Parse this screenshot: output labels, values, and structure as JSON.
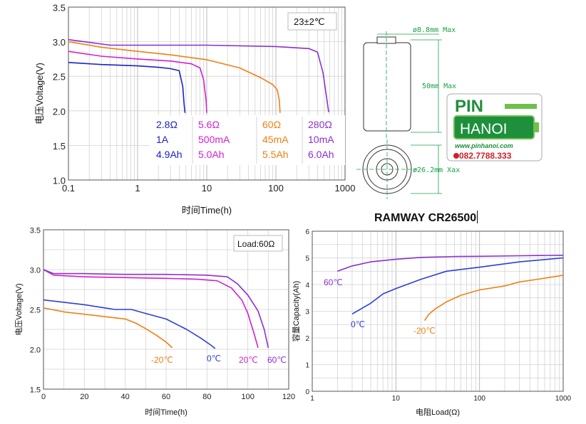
{
  "chart_data": [
    {
      "type": "line",
      "xscale": "log",
      "xlim": [
        0.1,
        1000
      ],
      "ylim": [
        1.0,
        3.5
      ],
      "xticks": [
        "0.1",
        "1",
        "10",
        "100",
        "1000"
      ],
      "yticks": [
        "1.0",
        "1.5",
        "2.0",
        "2.5",
        "3.0",
        "3.5"
      ],
      "xlabel": "时间Time(h)",
      "ylabel": "电压Voltage(V)",
      "annotation": "23±2℃",
      "legend": [
        {
          "r": "2.8Ω",
          "i": "1A",
          "c": "4.9Ah",
          "color": "#1a22c8"
        },
        {
          "r": "5.6Ω",
          "i": "500mA",
          "c": "5.0Ah",
          "color": "#d21fcf"
        },
        {
          "r": "60Ω",
          "i": "45mA",
          "c": "5.5Ah",
          "color": "#f07f12"
        },
        {
          "r": "280Ω",
          "i": "10mA",
          "c": "6.0Ah",
          "color": "#8a2fd0"
        }
      ],
      "series": [
        {
          "color": "#1a22c8",
          "x": [
            0.1,
            0.3,
            1,
            2,
            3,
            4,
            4.5,
            4.7,
            4.85
          ],
          "y": [
            2.7,
            2.67,
            2.65,
            2.63,
            2.61,
            2.58,
            2.35,
            2.1,
            1.97
          ]
        },
        {
          "color": "#d21fcf",
          "x": [
            0.1,
            0.3,
            1,
            3,
            6,
            8,
            9,
            9.8,
            10
          ],
          "y": [
            2.86,
            2.79,
            2.75,
            2.72,
            2.68,
            2.62,
            2.45,
            2.15,
            1.97
          ]
        },
        {
          "color": "#f07f12",
          "x": [
            0.1,
            0.3,
            1,
            3,
            10,
            30,
            60,
            90,
            105,
            112,
            115
          ],
          "y": [
            3.0,
            2.92,
            2.86,
            2.81,
            2.74,
            2.62,
            2.48,
            2.38,
            2.3,
            2.15,
            1.97
          ]
        },
        {
          "color": "#8a2fd0",
          "x": [
            0.1,
            0.4,
            1,
            10,
            100,
            300,
            400,
            480,
            540,
            580
          ],
          "y": [
            3.03,
            2.95,
            2.95,
            2.95,
            2.93,
            2.9,
            2.85,
            2.55,
            2.2,
            1.98
          ]
        }
      ]
    },
    {
      "type": "line",
      "xlim": [
        0,
        120
      ],
      "ylim": [
        1.5,
        3.5
      ],
      "xticks": [
        "0",
        "20",
        "40",
        "60",
        "80",
        "100",
        "120"
      ],
      "yticks": [
        "1.5",
        "2.0",
        "2.5",
        "3.0",
        "3.5"
      ],
      "xlabel": "时间Time(h)",
      "ylabel": "电压Voltage(V)",
      "annotation": "Load:60Ω",
      "series": [
        {
          "name": "-20℃",
          "color": "#f07f12",
          "x": [
            0,
            10,
            20,
            30,
            40,
            45,
            50,
            55,
            60,
            63
          ],
          "y": [
            2.52,
            2.47,
            2.44,
            2.41,
            2.38,
            2.33,
            2.26,
            2.18,
            2.09,
            2.02
          ]
        },
        {
          "name": "0℃",
          "color": "#2c3fd6",
          "x": [
            0,
            10,
            20,
            30,
            35,
            43,
            50,
            60,
            70,
            77,
            82,
            84
          ],
          "y": [
            2.62,
            2.59,
            2.56,
            2.52,
            2.5,
            2.5,
            2.45,
            2.38,
            2.25,
            2.14,
            2.05,
            2.01
          ]
        },
        {
          "name": "20℃",
          "color": "#d21fcf",
          "x": [
            0,
            5,
            20,
            40,
            60,
            75,
            85,
            92,
            97,
            100,
            103,
            105
          ],
          "y": [
            3.0,
            2.93,
            2.91,
            2.9,
            2.89,
            2.88,
            2.86,
            2.77,
            2.62,
            2.45,
            2.2,
            2.02
          ]
        },
        {
          "name": "60℃",
          "color": "#8a2fd0",
          "x": [
            0,
            5,
            20,
            40,
            60,
            80,
            90,
            95,
            100,
            105,
            108,
            110
          ],
          "y": [
            3.0,
            2.95,
            2.95,
            2.94,
            2.94,
            2.93,
            2.91,
            2.82,
            2.68,
            2.48,
            2.25,
            2.02
          ]
        }
      ]
    },
    {
      "type": "line",
      "xscale": "log",
      "xlim": [
        1,
        1000
      ],
      "ylim": [
        0,
        6
      ],
      "xticks": [
        "1",
        "10",
        "100",
        "1000"
      ],
      "yticks": [
        "0",
        "1",
        "2",
        "3",
        "4",
        "5",
        "6"
      ],
      "xlabel": "电阻Load(Ω)",
      "ylabel": "容量Capacity(Ah)",
      "series": [
        {
          "name": "60℃",
          "color": "#8a2fd0",
          "x": [
            2,
            3,
            5,
            10,
            20,
            50,
            100,
            300,
            1000
          ],
          "y": [
            4.5,
            4.7,
            4.85,
            4.95,
            5.02,
            5.05,
            5.06,
            5.08,
            5.1
          ]
        },
        {
          "name": "0℃",
          "color": "#2c3fd6",
          "x": [
            3,
            5,
            7,
            10,
            20,
            40,
            100,
            300,
            1000
          ],
          "y": [
            2.9,
            3.3,
            3.65,
            3.85,
            4.2,
            4.5,
            4.65,
            4.85,
            5.0
          ]
        },
        {
          "name": "-20℃",
          "color": "#f07f12",
          "x": [
            22,
            25,
            30,
            40,
            60,
            100,
            200,
            300,
            500,
            1000
          ],
          "y": [
            2.65,
            2.9,
            3.1,
            3.35,
            3.6,
            3.8,
            3.95,
            4.1,
            4.2,
            4.35
          ]
        }
      ]
    }
  ],
  "product_title": "RAMWAY CR26500",
  "drawing": {
    "diameter_top": "ø8.8mm Max",
    "height": "50mm Max",
    "diameter_side": "ø26.2mm Xax"
  },
  "logo": {
    "pin": "PIN",
    "hanoi": "HANOI",
    "url": "www.pinhanoi.com",
    "phone": "082.7788.333"
  }
}
